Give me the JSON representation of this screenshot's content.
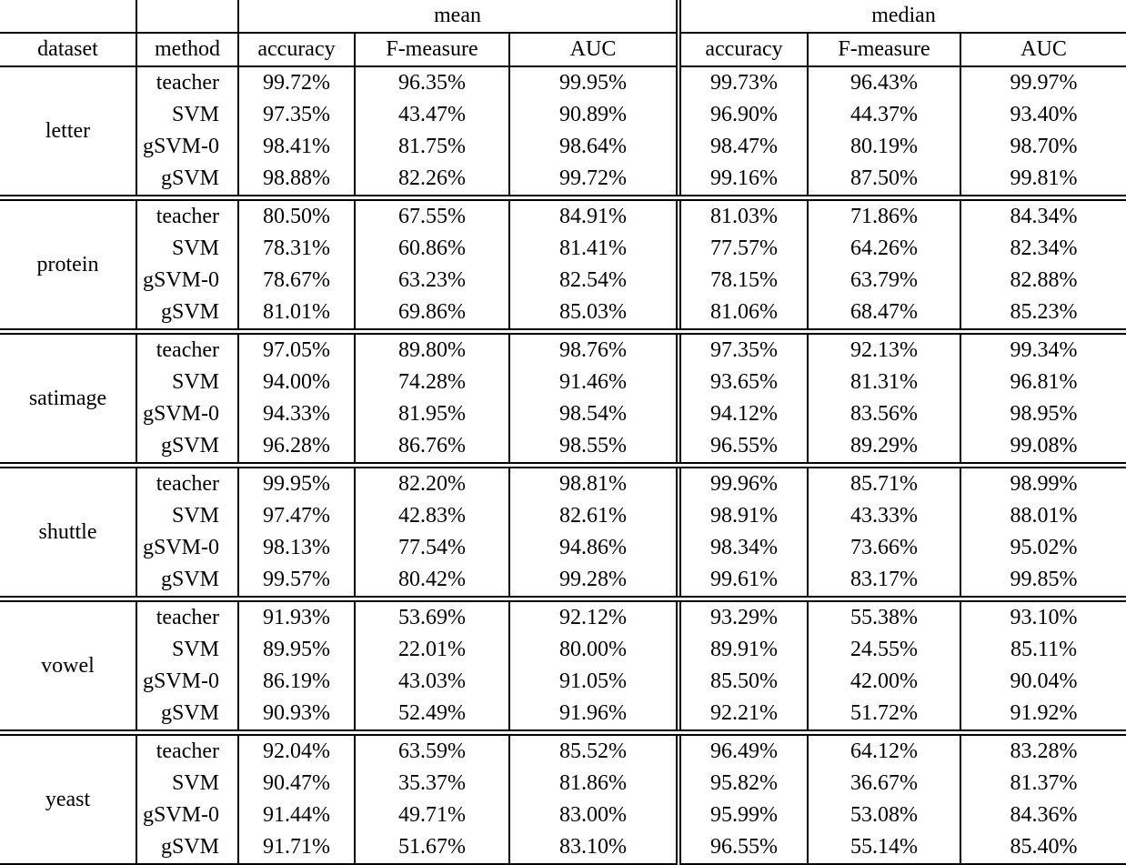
{
  "table": {
    "group_header": {
      "mean": "mean",
      "median": "median"
    },
    "columns": [
      "dataset",
      "method",
      "accuracy",
      "F-measure",
      "AUC",
      "accuracy",
      "F-measure",
      "AUC"
    ],
    "blocks": [
      {
        "dataset": "letter",
        "rows": [
          {
            "method": "teacher",
            "values": [
              "99.72%",
              "96.35%",
              "99.95%",
              "99.73%",
              "96.43%",
              "99.97%"
            ]
          },
          {
            "method": "SVM",
            "values": [
              "97.35%",
              "43.47%",
              "90.89%",
              "96.90%",
              "44.37%",
              "93.40%"
            ]
          },
          {
            "method": "gSVM-0",
            "values": [
              "98.41%",
              "81.75%",
              "98.64%",
              "98.47%",
              "80.19%",
              "98.70%"
            ]
          },
          {
            "method": "gSVM",
            "values": [
              "98.88%",
              "82.26%",
              "99.72%",
              "99.16%",
              "87.50%",
              "99.81%"
            ]
          }
        ]
      },
      {
        "dataset": "protein",
        "rows": [
          {
            "method": "teacher",
            "values": [
              "80.50%",
              "67.55%",
              "84.91%",
              "81.03%",
              "71.86%",
              "84.34%"
            ]
          },
          {
            "method": "SVM",
            "values": [
              "78.31%",
              "60.86%",
              "81.41%",
              "77.57%",
              "64.26%",
              "82.34%"
            ]
          },
          {
            "method": "gSVM-0",
            "values": [
              "78.67%",
              "63.23%",
              "82.54%",
              "78.15%",
              "63.79%",
              "82.88%"
            ]
          },
          {
            "method": "gSVM",
            "values": [
              "81.01%",
              "69.86%",
              "85.03%",
              "81.06%",
              "68.47%",
              "85.23%"
            ]
          }
        ]
      },
      {
        "dataset": "satimage",
        "rows": [
          {
            "method": "teacher",
            "values": [
              "97.05%",
              "89.80%",
              "98.76%",
              "97.35%",
              "92.13%",
              "99.34%"
            ]
          },
          {
            "method": "SVM",
            "values": [
              "94.00%",
              "74.28%",
              "91.46%",
              "93.65%",
              "81.31%",
              "96.81%"
            ]
          },
          {
            "method": "gSVM-0",
            "values": [
              "94.33%",
              "81.95%",
              "98.54%",
              "94.12%",
              "83.56%",
              "98.95%"
            ]
          },
          {
            "method": "gSVM",
            "values": [
              "96.28%",
              "86.76%",
              "98.55%",
              "96.55%",
              "89.29%",
              "99.08%"
            ]
          }
        ]
      },
      {
        "dataset": "shuttle",
        "rows": [
          {
            "method": "teacher",
            "values": [
              "99.95%",
              "82.20%",
              "98.81%",
              "99.96%",
              "85.71%",
              "98.99%"
            ]
          },
          {
            "method": "SVM",
            "values": [
              "97.47%",
              "42.83%",
              "82.61%",
              "98.91%",
              "43.33%",
              "88.01%"
            ]
          },
          {
            "method": "gSVM-0",
            "values": [
              "98.13%",
              "77.54%",
              "94.86%",
              "98.34%",
              "73.66%",
              "95.02%"
            ]
          },
          {
            "method": "gSVM",
            "values": [
              "99.57%",
              "80.42%",
              "99.28%",
              "99.61%",
              "83.17%",
              "99.85%"
            ]
          }
        ]
      },
      {
        "dataset": "vowel",
        "rows": [
          {
            "method": "teacher",
            "values": [
              "91.93%",
              "53.69%",
              "92.12%",
              "93.29%",
              "55.38%",
              "93.10%"
            ]
          },
          {
            "method": "SVM",
            "values": [
              "89.95%",
              "22.01%",
              "80.00%",
              "89.91%",
              "24.55%",
              "85.11%"
            ]
          },
          {
            "method": "gSVM-0",
            "values": [
              "86.19%",
              "43.03%",
              "91.05%",
              "85.50%",
              "42.00%",
              "90.04%"
            ]
          },
          {
            "method": "gSVM",
            "values": [
              "90.93%",
              "52.49%",
              "91.96%",
              "92.21%",
              "51.72%",
              "91.92%"
            ]
          }
        ]
      },
      {
        "dataset": "yeast",
        "rows": [
          {
            "method": "teacher",
            "values": [
              "92.04%",
              "63.59%",
              "85.52%",
              "96.49%",
              "64.12%",
              "83.28%"
            ]
          },
          {
            "method": "SVM",
            "values": [
              "90.47%",
              "35.37%",
              "81.86%",
              "95.82%",
              "36.67%",
              "81.37%"
            ]
          },
          {
            "method": "gSVM-0",
            "values": [
              "91.44%",
              "49.71%",
              "83.00%",
              "95.99%",
              "53.08%",
              "84.36%"
            ]
          },
          {
            "method": "gSVM",
            "values": [
              "91.71%",
              "51.67%",
              "83.10%",
              "96.55%",
              "55.14%",
              "85.40%"
            ]
          }
        ]
      }
    ]
  }
}
